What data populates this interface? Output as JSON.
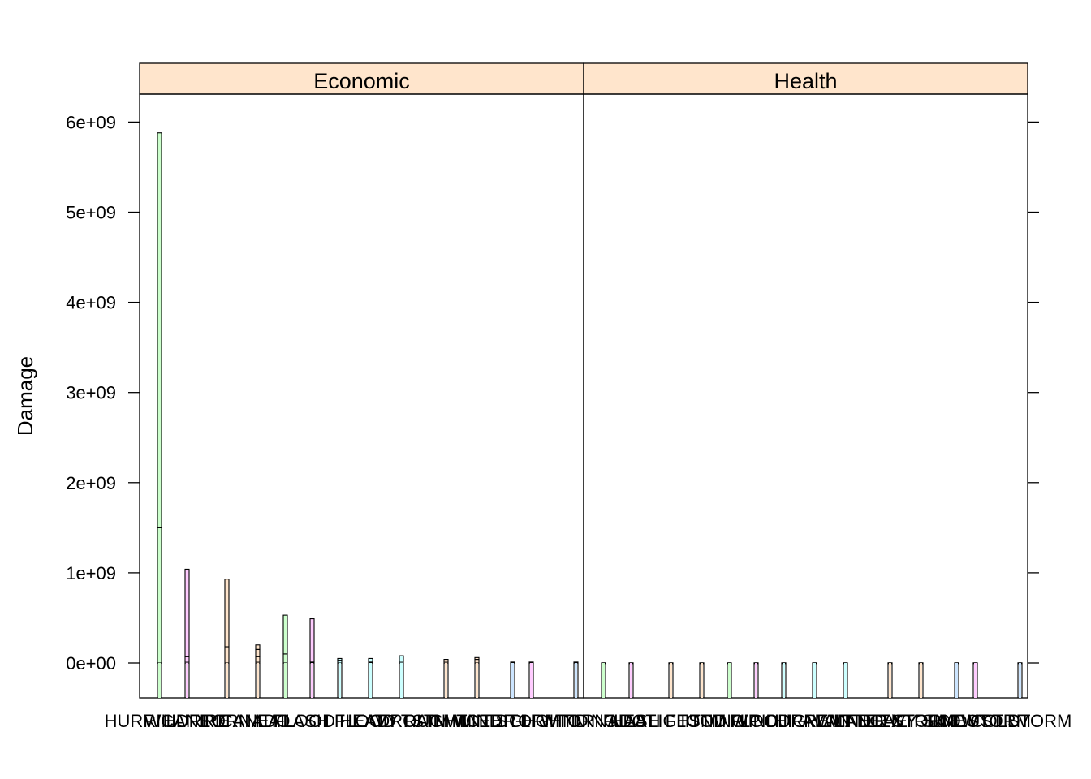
{
  "chart_data": {
    "type": "bar",
    "layout": "lattice-panels-side-by-side",
    "ylabel": "Damage",
    "ylim": [
      -400000000,
      6300000000
    ],
    "yticks": [
      0,
      1000000000,
      2000000000,
      3000000000,
      4000000000,
      5000000000,
      6000000000
    ],
    "ytick_labels": [
      "0e+00",
      "1e+09",
      "2e+09",
      "3e+09",
      "4e+09",
      "5e+09",
      "6e+09"
    ],
    "grid": false,
    "legend": "none",
    "panels": [
      {
        "name": "Economic",
        "strip_color": "#ffe5cc",
        "x_overlapping_labels": [
          "HURRICANE",
          "WILDFIRE",
          "HURRICANE",
          "TORNADO",
          "HAIL",
          "FLOOD",
          "FLASH FLOOD",
          "HEAT",
          "HEAVY RAIN",
          "DROUGHT",
          "TSTM WIND",
          "WINTER",
          "ICE STORM",
          "HIGH WIND",
          "LIGHTNING"
        ],
        "bars": [
          {
            "segments": [
              1500000000,
              4380000000
            ],
            "color": "#ccffcc"
          },
          {
            "segments": [
              20000000,
              50000000,
              970000000
            ],
            "color": "#ffccff"
          },
          {
            "segments": [
              180000000,
              750000000
            ],
            "color": "#ffe5cc"
          },
          {
            "segments": [
              20000000,
              50000000,
              80000000,
              50000000
            ],
            "color": "#ffe5cc"
          },
          {
            "segments": [
              100000000,
              430000000
            ],
            "color": "#ccffcc"
          },
          {
            "segments": [
              10000000,
              480000000
            ],
            "color": "#ffccff"
          },
          {
            "segments": [
              30000000,
              20000000
            ],
            "color": "#ccffff"
          },
          {
            "segments": [
              10000000,
              40000000
            ],
            "color": "#ccffff"
          },
          {
            "segments": [
              20000000,
              60000000
            ],
            "color": "#ccffff"
          },
          {
            "segments": [
              20000000,
              20000000
            ],
            "color": "#ffe5cc"
          },
          {
            "segments": [
              40000000,
              20000000
            ],
            "color": "#ffe5cc"
          },
          {
            "segments": [
              10000000
            ],
            "color": "#cce5ff"
          },
          {
            "segments": [
              10000000
            ],
            "color": "#ffccff"
          },
          {
            "segments": [
              10000000
            ],
            "color": "#cce5ff"
          }
        ]
      },
      {
        "name": "Health",
        "strip_color": "#ffe5cc",
        "x_overlapping_labels": [
          "TORNADO",
          "HEAT",
          "FLASH FLOOD",
          "LIGHTNING",
          "TSTM WIND",
          "FLOOD",
          "RIP CURRENT",
          "HIGH WIND",
          "AVALANCHE",
          "WINTER STORM",
          "HEAVY SNOW",
          "EXTREME COLD",
          "ICE STORM",
          "DUST STORM"
        ],
        "bars": [
          {
            "segments": [
              2000000
            ],
            "color": "#ccffcc"
          },
          {
            "segments": [
              2000000
            ],
            "color": "#ffccff"
          },
          {
            "segments": [
              2000000
            ],
            "color": "#ffe5cc"
          },
          {
            "segments": [
              2000000
            ],
            "color": "#ffe5cc"
          },
          {
            "segments": [
              2000000
            ],
            "color": "#ccffcc"
          },
          {
            "segments": [
              2000000
            ],
            "color": "#ffccff"
          },
          {
            "segments": [
              2000000
            ],
            "color": "#ccffff"
          },
          {
            "segments": [
              2000000
            ],
            "color": "#ccffff"
          },
          {
            "segments": [
              2000000
            ],
            "color": "#ccffff"
          },
          {
            "segments": [
              2000000
            ],
            "color": "#ffe5cc"
          },
          {
            "segments": [
              2000000
            ],
            "color": "#ffe5cc"
          },
          {
            "segments": [
              2000000
            ],
            "color": "#cce5ff"
          },
          {
            "segments": [
              2000000
            ],
            "color": "#ffccff"
          },
          {
            "segments": [
              2000000
            ],
            "color": "#cce5ff"
          }
        ]
      }
    ]
  }
}
